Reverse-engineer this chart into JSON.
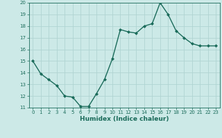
{
  "x": [
    0,
    1,
    2,
    3,
    4,
    5,
    6,
    7,
    8,
    9,
    10,
    11,
    12,
    13,
    14,
    15,
    16,
    17,
    18,
    19,
    20,
    21,
    22,
    23
  ],
  "y": [
    15.0,
    13.9,
    13.4,
    12.9,
    12.0,
    11.9,
    11.1,
    11.1,
    12.2,
    13.4,
    15.2,
    17.7,
    17.5,
    17.4,
    18.0,
    18.2,
    20.0,
    19.0,
    17.6,
    17.0,
    16.5,
    16.3,
    16.3,
    16.3
  ],
  "line_color": "#1a6b5a",
  "marker": "D",
  "marker_size": 2.0,
  "bg_color": "#cce9e7",
  "grid_color": "#b0d4d2",
  "xlabel": "Humidex (Indice chaleur)",
  "ylim": [
    11,
    20
  ],
  "xlim_min": -0.5,
  "xlim_max": 23.5,
  "yticks": [
    11,
    12,
    13,
    14,
    15,
    16,
    17,
    18,
    19,
    20
  ],
  "xticks": [
    0,
    1,
    2,
    3,
    4,
    5,
    6,
    7,
    8,
    9,
    10,
    11,
    12,
    13,
    14,
    15,
    16,
    17,
    18,
    19,
    20,
    21,
    22,
    23
  ],
  "tick_color": "#1a6b5a",
  "label_fontsize": 6.5,
  "tick_fontsize": 5.0,
  "linewidth": 1.0
}
